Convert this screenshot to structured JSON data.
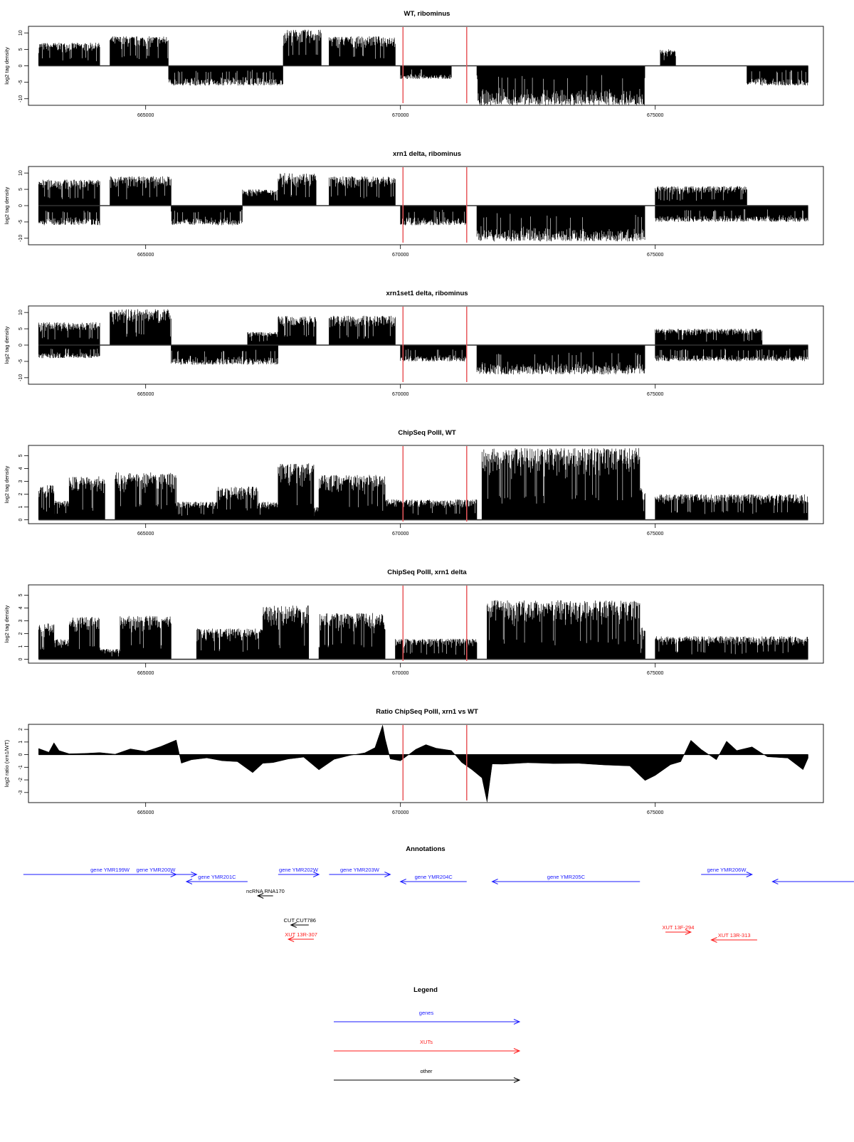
{
  "colors": {
    "signal": "#000000",
    "marker": "#e8585c",
    "gene": "#1a1aff",
    "xut": "#ff1a1a",
    "other": "#000000"
  },
  "x_axis": {
    "range": [
      662700,
      678300
    ],
    "ticks": [
      665000,
      670000,
      675000
    ],
    "tick_labels": [
      "665000",
      "670000",
      "675000"
    ]
  },
  "marker_lines": [
    670050,
    671300
  ],
  "chart_data": [
    {
      "type": "bar",
      "title": "WT, ribominus",
      "ylabel": "log2 tag density",
      "ylim": [
        -12,
        12
      ],
      "yticks": [
        -10,
        -5,
        0,
        5,
        10
      ],
      "ytick_labels": [
        "-10",
        "-5",
        "0",
        "5",
        "10"
      ],
      "segments": [
        {
          "x0": 662900,
          "x1": 664100,
          "sign": 1,
          "amp": 7
        },
        {
          "x0": 664300,
          "x1": 665450,
          "sign": 1,
          "amp": 9
        },
        {
          "x0": 665450,
          "x1": 667700,
          "sign": -1,
          "amp": 6
        },
        {
          "x0": 667700,
          "x1": 668450,
          "sign": 1,
          "amp": 11
        },
        {
          "x0": 668600,
          "x1": 669900,
          "sign": 1,
          "amp": 9
        },
        {
          "x0": 670000,
          "x1": 671000,
          "sign": -1,
          "amp": 4
        },
        {
          "x0": 671500,
          "x1": 674800,
          "sign": -1,
          "amp": 12
        },
        {
          "x0": 675100,
          "x1": 675400,
          "sign": 1,
          "amp": 5
        },
        {
          "x0": 676800,
          "x1": 678000,
          "sign": -1,
          "amp": 6
        }
      ]
    },
    {
      "type": "bar",
      "title": "xrn1 delta, ribominus",
      "ylabel": "log2 tag density",
      "ylim": [
        -12,
        12
      ],
      "yticks": [
        -10,
        -5,
        0,
        5,
        10
      ],
      "ytick_labels": [
        "-10",
        "-5",
        "0",
        "5",
        "10"
      ],
      "segments": [
        {
          "x0": 662900,
          "x1": 664100,
          "sign": 1,
          "amp": 8
        },
        {
          "x0": 662900,
          "x1": 664100,
          "sign": -1,
          "amp": 6
        },
        {
          "x0": 664300,
          "x1": 665500,
          "sign": 1,
          "amp": 9
        },
        {
          "x0": 665500,
          "x1": 666900,
          "sign": -1,
          "amp": 6
        },
        {
          "x0": 666900,
          "x1": 667600,
          "sign": 1,
          "amp": 5
        },
        {
          "x0": 667600,
          "x1": 668350,
          "sign": 1,
          "amp": 10
        },
        {
          "x0": 668600,
          "x1": 669900,
          "sign": 1,
          "amp": 9
        },
        {
          "x0": 670000,
          "x1": 671300,
          "sign": -1,
          "amp": 6
        },
        {
          "x0": 671500,
          "x1": 674800,
          "sign": -1,
          "amp": 11
        },
        {
          "x0": 675000,
          "x1": 676800,
          "sign": 1,
          "amp": 6
        },
        {
          "x0": 675000,
          "x1": 678000,
          "sign": -1,
          "amp": 5
        }
      ]
    },
    {
      "type": "bar",
      "title": "xrn1set1 delta, ribominus",
      "ylabel": "log2 tag density",
      "ylim": [
        -12,
        12
      ],
      "yticks": [
        -10,
        -5,
        0,
        5,
        10
      ],
      "ytick_labels": [
        "-10",
        "-5",
        "0",
        "5",
        "10"
      ],
      "segments": [
        {
          "x0": 662900,
          "x1": 664100,
          "sign": 1,
          "amp": 7
        },
        {
          "x0": 662900,
          "x1": 664100,
          "sign": -1,
          "amp": 4
        },
        {
          "x0": 664300,
          "x1": 665500,
          "sign": 1,
          "amp": 11
        },
        {
          "x0": 665500,
          "x1": 667600,
          "sign": -1,
          "amp": 6
        },
        {
          "x0": 667000,
          "x1": 667600,
          "sign": 1,
          "amp": 4
        },
        {
          "x0": 667600,
          "x1": 668350,
          "sign": 1,
          "amp": 9
        },
        {
          "x0": 668600,
          "x1": 669900,
          "sign": 1,
          "amp": 9
        },
        {
          "x0": 670000,
          "x1": 671300,
          "sign": -1,
          "amp": 5
        },
        {
          "x0": 671500,
          "x1": 674800,
          "sign": -1,
          "amp": 9
        },
        {
          "x0": 675000,
          "x1": 677100,
          "sign": 1,
          "amp": 5
        },
        {
          "x0": 675000,
          "x1": 678000,
          "sign": -1,
          "amp": 5
        }
      ]
    },
    {
      "type": "bar",
      "title": "ChipSeq PolII, WT",
      "ylabel": "log2 tag density",
      "ylim": [
        -0.3,
        5.8
      ],
      "yticks": [
        0,
        1,
        2,
        3,
        4,
        5
      ],
      "ytick_labels": [
        "0",
        "1",
        "2",
        "3",
        "4",
        "5"
      ],
      "segments": [
        {
          "x0": 662900,
          "x1": 663200,
          "sign": 1,
          "amp": 2.7
        },
        {
          "x0": 663200,
          "x1": 663500,
          "sign": 1,
          "amp": 1.5
        },
        {
          "x0": 663500,
          "x1": 664200,
          "sign": 1,
          "amp": 3.4
        },
        {
          "x0": 664400,
          "x1": 665600,
          "sign": 1,
          "amp": 3.7
        },
        {
          "x0": 665600,
          "x1": 666400,
          "sign": 1,
          "amp": 1.4
        },
        {
          "x0": 666400,
          "x1": 667200,
          "sign": 1,
          "amp": 2.6
        },
        {
          "x0": 667200,
          "x1": 667600,
          "sign": 1,
          "amp": 1.4
        },
        {
          "x0": 667600,
          "x1": 668300,
          "sign": 1,
          "amp": 4.4
        },
        {
          "x0": 668300,
          "x1": 668400,
          "sign": 1,
          "amp": 1
        },
        {
          "x0": 668400,
          "x1": 669700,
          "sign": 1,
          "amp": 3.5
        },
        {
          "x0": 669700,
          "x1": 671500,
          "sign": 1,
          "amp": 1.6
        },
        {
          "x0": 671600,
          "x1": 674700,
          "sign": 1,
          "amp": 5.6
        },
        {
          "x0": 674700,
          "x1": 674800,
          "sign": 1,
          "amp": 2.5
        },
        {
          "x0": 675000,
          "x1": 678000,
          "sign": 1,
          "amp": 2
        }
      ]
    },
    {
      "type": "bar",
      "title": "ChipSeq PolII, xrn1 delta",
      "ylabel": "log2 tag density",
      "ylim": [
        -0.3,
        5.8
      ],
      "yticks": [
        0,
        1,
        2,
        3,
        4,
        5
      ],
      "ytick_labels": [
        "0",
        "1",
        "2",
        "3",
        "4",
        "5"
      ],
      "segments": [
        {
          "x0": 662900,
          "x1": 663200,
          "sign": 1,
          "amp": 2.8
        },
        {
          "x0": 663200,
          "x1": 663500,
          "sign": 1,
          "amp": 1.6
        },
        {
          "x0": 663500,
          "x1": 664100,
          "sign": 1,
          "amp": 3.3
        },
        {
          "x0": 664100,
          "x1": 664500,
          "sign": 1,
          "amp": 0.8
        },
        {
          "x0": 664500,
          "x1": 665500,
          "sign": 1,
          "amp": 3.4
        },
        {
          "x0": 666000,
          "x1": 667300,
          "sign": 1,
          "amp": 2.4
        },
        {
          "x0": 667300,
          "x1": 668200,
          "sign": 1,
          "amp": 4.2
        },
        {
          "x0": 668400,
          "x1": 669700,
          "sign": 1,
          "amp": 3.6
        },
        {
          "x0": 669900,
          "x1": 671500,
          "sign": 1,
          "amp": 1.6
        },
        {
          "x0": 671700,
          "x1": 674700,
          "sign": 1,
          "amp": 4.6
        },
        {
          "x0": 674700,
          "x1": 674800,
          "sign": 1,
          "amp": 2.5
        },
        {
          "x0": 675000,
          "x1": 678000,
          "sign": 1,
          "amp": 1.8
        }
      ]
    },
    {
      "type": "area",
      "title": "Ratio ChipSeq PolII, xrn1 vs WT",
      "ylabel": "log2 ratio (xrn1/WT)",
      "ylim": [
        -3.8,
        2.4
      ],
      "yticks": [
        -3,
        -2,
        -1,
        0,
        1,
        2
      ],
      "ytick_labels": [
        "-3",
        "-2",
        "-1",
        "0",
        "1",
        "2"
      ],
      "x": [
        662900,
        663100,
        663200,
        663300,
        663500,
        663800,
        664100,
        664400,
        664700,
        665000,
        665300,
        665600,
        665700,
        665900,
        666200,
        666500,
        666800,
        667100,
        667300,
        667500,
        667800,
        668100,
        668400,
        668700,
        669000,
        669300,
        669500,
        669650,
        669700,
        669800,
        670000,
        670300,
        670500,
        670700,
        671000,
        671200,
        671400,
        671600,
        671700,
        671800,
        672000,
        672500,
        673000,
        673500,
        674000,
        674500,
        674800,
        675000,
        675300,
        675500,
        675700,
        675900,
        676200,
        676400,
        676600,
        676900,
        677200,
        677600,
        677900,
        678000
      ],
      "y": [
        0.5,
        0.2,
        1.0,
        0.3,
        0.1,
        0.1,
        0.2,
        0.0,
        0.4,
        0.3,
        0.6,
        1.1,
        -0.7,
        -0.4,
        -0.3,
        -0.5,
        -0.6,
        -1.4,
        -0.7,
        -0.6,
        -0.3,
        -0.2,
        -1.2,
        -0.4,
        -0.1,
        0.2,
        0.6,
        2.3,
        1.2,
        -0.3,
        -0.5,
        0.4,
        0.8,
        0.5,
        0.3,
        -0.6,
        -1.2,
        -1.8,
        -3.7,
        -0.8,
        -0.8,
        -0.7,
        -0.7,
        -0.7,
        -0.8,
        -0.9,
        -2.1,
        -1.6,
        -0.8,
        -0.6,
        1.2,
        0.4,
        -0.4,
        1.1,
        0.3,
        0.6,
        -0.2,
        -0.3,
        -1.2,
        -0.3
      ]
    }
  ],
  "annotations": {
    "title": "Annotations",
    "features": [
      {
        "label": "gene YMR199W",
        "kind": "gene",
        "dir": 1,
        "x0": 662600,
        "x1": 666000,
        "row": 0
      },
      {
        "label": "gene YMR200W",
        "kind": "gene",
        "dir": 1,
        "x0": 664800,
        "x1": 665600,
        "row": 0
      },
      {
        "label": "gene YMR201C",
        "kind": "gene",
        "dir": -1,
        "x0": 665800,
        "x1": 667000,
        "row": 1
      },
      {
        "label": "gene YMR202W",
        "kind": "gene",
        "dir": 1,
        "x0": 667600,
        "x1": 668400,
        "row": 0
      },
      {
        "label": "gene YMR203W",
        "kind": "gene",
        "dir": 1,
        "x0": 668600,
        "x1": 669800,
        "row": 0
      },
      {
        "label": "gene YMR204C",
        "kind": "gene",
        "dir": -1,
        "x0": 670000,
        "x1": 671300,
        "row": 1
      },
      {
        "label": "gene YMR205C",
        "kind": "gene",
        "dir": -1,
        "x0": 671800,
        "x1": 674700,
        "row": 1
      },
      {
        "label": "gene YMR206W",
        "kind": "gene",
        "dir": 1,
        "x0": 675900,
        "x1": 676900,
        "row": 0
      },
      {
        "label": "",
        "kind": "gene",
        "dir": -1,
        "x0": 677300,
        "x1": 678900,
        "row": 1
      },
      {
        "label": "ncRNA RNA170",
        "kind": "other",
        "dir": -1,
        "x0": 667200,
        "x1": 667500,
        "row": 2
      },
      {
        "label": "CUT CUT786",
        "kind": "other",
        "dir": -1,
        "x0": 667850,
        "x1": 668200,
        "row": 3
      },
      {
        "label": "XUT 13R-307",
        "kind": "xut",
        "dir": -1,
        "x0": 667800,
        "x1": 668300,
        "row": 4
      },
      {
        "label": "XUT 13F-294",
        "kind": "xut",
        "dir": 1,
        "x0": 675200,
        "x1": 675700,
        "row": 5
      },
      {
        "label": "XUT 13R-313",
        "kind": "xut",
        "dir": -1,
        "x0": 676100,
        "x1": 677000,
        "row": 6
      }
    ]
  },
  "legend": {
    "title": "Legend",
    "entries": [
      {
        "label": "genes",
        "kind": "gene"
      },
      {
        "label": "XUTs",
        "kind": "xut"
      },
      {
        "label": "other",
        "kind": "other"
      }
    ]
  }
}
